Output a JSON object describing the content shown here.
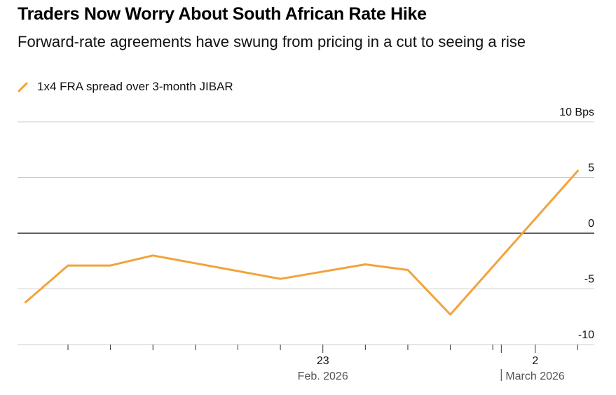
{
  "header": {
    "title": "Traders Now Worry About South African Rate Hike",
    "subtitle": "Forward-rate agreements have swung from pricing in a cut to seeing a rise"
  },
  "legend": {
    "label": "1x4 FRA spread over 3-month JIBAR",
    "icon": "diagonal-line-icon"
  },
  "colors": {
    "series": "#f2a33a",
    "grid": "#cccccc",
    "zero_line": "#000000"
  },
  "chart_data": {
    "type": "line",
    "title": "Traders Now Worry About South African Rate Hike",
    "subtitle": "Forward-rate agreements have swung from pricing in a cut to seeing a rise",
    "xlabel": "",
    "ylabel": "Bps",
    "ylim": [
      -10,
      10
    ],
    "yticks": [
      10,
      5,
      0,
      -5,
      -10
    ],
    "ytick_labels": [
      "10 Bps",
      "5",
      "0",
      "-5",
      "-10"
    ],
    "grid": true,
    "legend_position": "top-left",
    "x_day_index_domain": [
      -0.6,
      13.9
    ],
    "x_ticks": [
      {
        "day_index": 7,
        "label": "23",
        "sublabel": "Feb. 2026"
      },
      {
        "day_index": 12,
        "label": "2",
        "sublabel": "March 2026"
      }
    ],
    "minor_x_ticks": [
      1,
      2,
      3,
      4,
      5,
      6,
      8,
      9,
      10,
      11,
      13
    ],
    "month_divider_day_index": 11.2,
    "series": [
      {
        "name": "1x4 FRA spread over 3-month JIBAR",
        "x_day_index": [
          0,
          1,
          2,
          3,
          6,
          8,
          9,
          10,
          13
        ],
        "values": [
          -6.2,
          -2.9,
          -2.9,
          -2.0,
          -4.1,
          -2.8,
          -3.3,
          -7.3,
          5.6
        ]
      }
    ]
  }
}
